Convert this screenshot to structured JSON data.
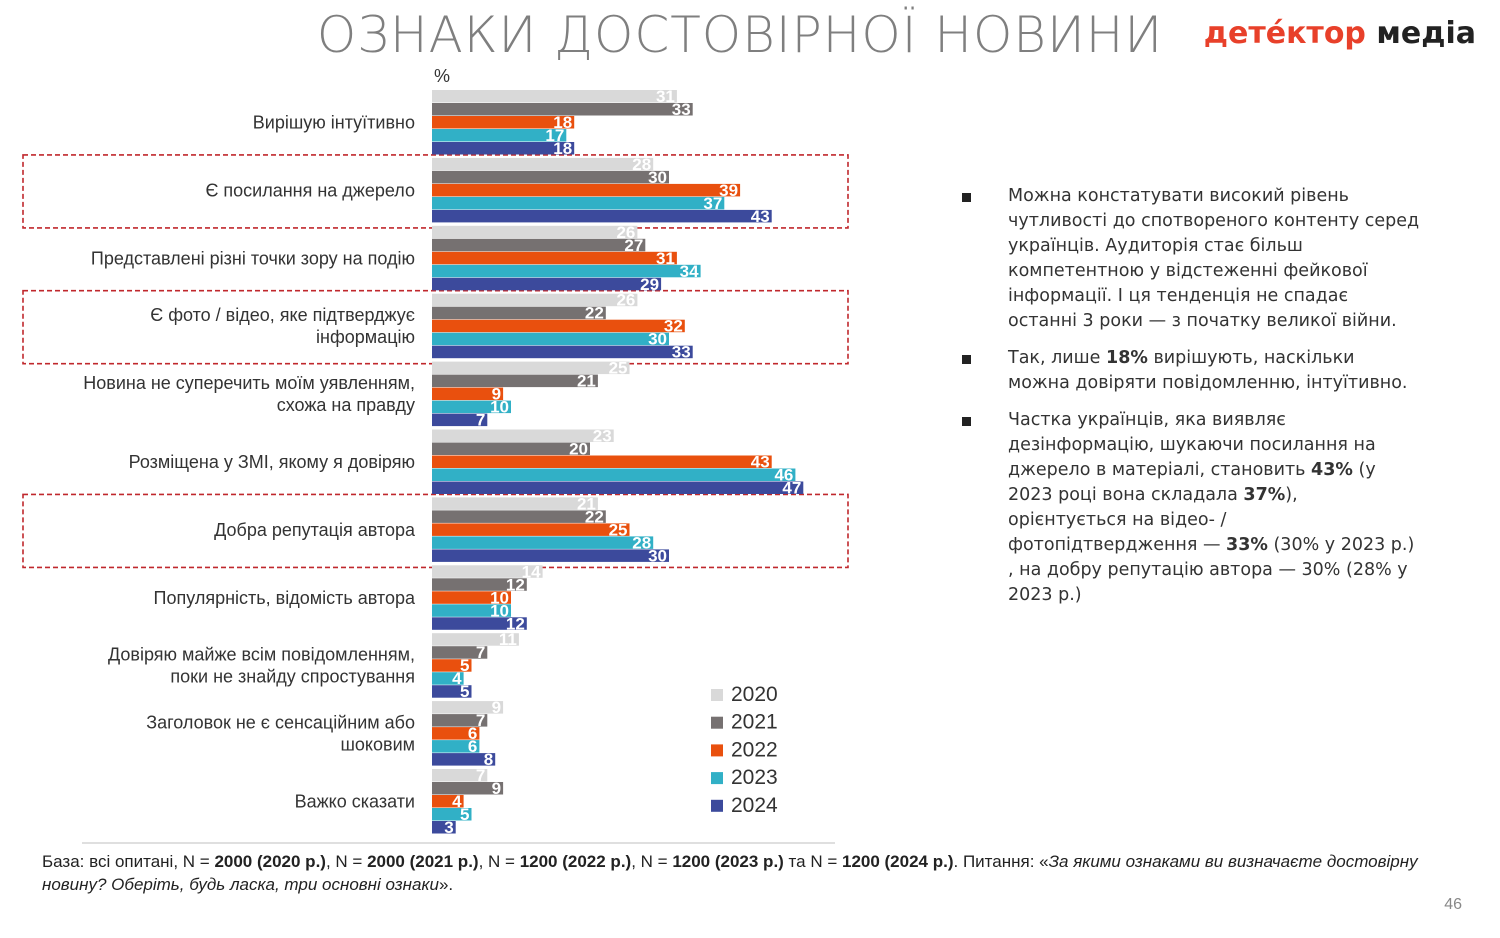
{
  "title": "ОЗНАКИ ДОСТОВІРНОЇ НОВИНИ",
  "logo": {
    "part1": "детéктор",
    "part2": "медіа"
  },
  "chart_data": {
    "type": "bar",
    "orientation": "horizontal",
    "unit_label": "%",
    "categories": [
      [
        "Вирішую інтуїтивно"
      ],
      [
        "Є посилання на джерело"
      ],
      [
        "Представлені різні точки зору на подію"
      ],
      [
        "Є фото / відео, яке підтверджує",
        "інформацію"
      ],
      [
        "Новина не суперечить моїм уявленням,",
        "схожа на правду"
      ],
      [
        "Розміщена у ЗМІ, якому я довіряю"
      ],
      [
        "Добра репутація автора"
      ],
      [
        "Популярність, відомість автора"
      ],
      [
        "Довіряю майже всім повідомленням,",
        "поки не знайду спростування"
      ],
      [
        "Заголовок не є сенсаційним або",
        "шоковим"
      ],
      [
        "Важко сказати"
      ]
    ],
    "series": [
      {
        "name": "2020",
        "color": "#d9d9d9",
        "values": [
          31,
          28,
          26,
          26,
          25,
          23,
          21,
          14,
          11,
          9,
          7
        ]
      },
      {
        "name": "2021",
        "color": "#767171",
        "values": [
          33,
          30,
          27,
          22,
          21,
          20,
          22,
          12,
          7,
          7,
          9
        ]
      },
      {
        "name": "2022",
        "color": "#e9500e",
        "values": [
          18,
          39,
          31,
          32,
          9,
          43,
          25,
          10,
          5,
          6,
          4
        ]
      },
      {
        "name": "2023",
        "color": "#31b0c6",
        "values": [
          17,
          37,
          34,
          30,
          10,
          46,
          28,
          10,
          4,
          6,
          5
        ]
      },
      {
        "name": "2024",
        "color": "#3c4a9c",
        "values": [
          18,
          43,
          29,
          33,
          7,
          47,
          30,
          12,
          5,
          8,
          3
        ]
      }
    ],
    "highlighted_categories": [
      1,
      3,
      6
    ],
    "legend_position": "bottom-right"
  },
  "bullets": [
    [
      {
        "t": "Можна констатувати високий рівень чутливості до спотвореного контенту серед українців. Аудиторія стає більш компетентною у відстеженні фейкової інформації. І ця тенденція не спадає останні 3 роки — з початку великої війни.",
        "b": false
      }
    ],
    [
      {
        "t": "Так, лише ",
        "b": false
      },
      {
        "t": "18%",
        "b": true
      },
      {
        "t": " вирішують, наскільки можна довіряти повідомленню, інтуїтивно.",
        "b": false
      }
    ],
    [
      {
        "t": "Частка українців, яка виявляє дезінформацію, шукаючи посилання на джерело в матеріалі, становить ",
        "b": false
      },
      {
        "t": "43%",
        "b": true
      },
      {
        "t": " (у 2023 році вона складала ",
        "b": false
      },
      {
        "t": "37%",
        "b": true
      },
      {
        "t": "), орієнтується на відео- / фотопідтвердження — ",
        "b": false
      },
      {
        "t": "33%",
        "b": true
      },
      {
        "t": " (30% у 2023 р.) , на добру репутацію автора — 30% (28% у 2023 р.)",
        "b": false
      }
    ]
  ],
  "footnote": [
    {
      "t": "База: всі опитані, N = ",
      "s": ""
    },
    {
      "t": "2000 (2020 р.)",
      "s": "b"
    },
    {
      "t": ", N = ",
      "s": ""
    },
    {
      "t": "2000 (2021 р.)",
      "s": "b"
    },
    {
      "t": ", N = ",
      "s": ""
    },
    {
      "t": "1200 (2022 р.)",
      "s": "b"
    },
    {
      "t": ", N = ",
      "s": ""
    },
    {
      "t": "1200 (2023 р.)",
      "s": "b"
    },
    {
      "t": " та N = ",
      "s": ""
    },
    {
      "t": "1200 (2024 р.)",
      "s": "b"
    },
    {
      "t": ". Питання: «",
      "s": ""
    },
    {
      "t": "За якими ознаками ви визначаєте достовірну новину? Оберіть, будь ласка, три основні ознаки",
      "s": "i"
    },
    {
      "t": "».",
      "s": ""
    }
  ],
  "page_number": "46"
}
